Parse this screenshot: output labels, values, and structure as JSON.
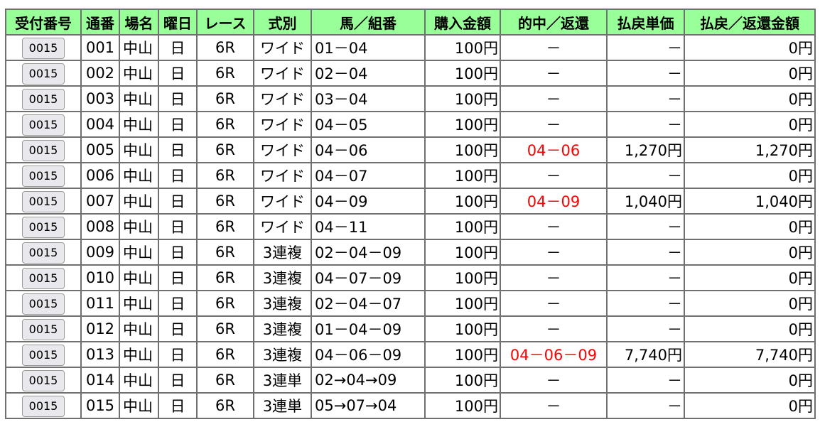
{
  "headers": [
    "受付番号",
    "通番",
    "場名",
    "曜日",
    "レース",
    "式別",
    "馬／組番",
    "購入金額",
    "的中／返還",
    "払戻単価",
    "払戻／返還金額"
  ],
  "hit_color": "#ff0000",
  "header_color": "#99ff99",
  "rows": [
    {
      "receipt": "0015",
      "no": "001",
      "venue": "中山",
      "day": "日",
      "race": "6R",
      "type": "ワイド",
      "combo": "01－04",
      "amount": "100円",
      "hit": "－",
      "unit": "－",
      "payout": "0円"
    },
    {
      "receipt": "0015",
      "no": "002",
      "venue": "中山",
      "day": "日",
      "race": "6R",
      "type": "ワイド",
      "combo": "02－04",
      "amount": "100円",
      "hit": "－",
      "unit": "－",
      "payout": "0円"
    },
    {
      "receipt": "0015",
      "no": "003",
      "venue": "中山",
      "day": "日",
      "race": "6R",
      "type": "ワイド",
      "combo": "03－04",
      "amount": "100円",
      "hit": "－",
      "unit": "－",
      "payout": "0円"
    },
    {
      "receipt": "0015",
      "no": "004",
      "venue": "中山",
      "day": "日",
      "race": "6R",
      "type": "ワイド",
      "combo": "04－05",
      "amount": "100円",
      "hit": "－",
      "unit": "－",
      "payout": "0円"
    },
    {
      "receipt": "0015",
      "no": "005",
      "venue": "中山",
      "day": "日",
      "race": "6R",
      "type": "ワイド",
      "combo": "04－06",
      "amount": "100円",
      "hit": "04－06",
      "unit": "1,270円",
      "payout": "1,270円"
    },
    {
      "receipt": "0015",
      "no": "006",
      "venue": "中山",
      "day": "日",
      "race": "6R",
      "type": "ワイド",
      "combo": "04－07",
      "amount": "100円",
      "hit": "－",
      "unit": "－",
      "payout": "0円"
    },
    {
      "receipt": "0015",
      "no": "007",
      "venue": "中山",
      "day": "日",
      "race": "6R",
      "type": "ワイド",
      "combo": "04－09",
      "amount": "100円",
      "hit": "04－09",
      "unit": "1,040円",
      "payout": "1,040円"
    },
    {
      "receipt": "0015",
      "no": "008",
      "venue": "中山",
      "day": "日",
      "race": "6R",
      "type": "ワイド",
      "combo": "04－11",
      "amount": "100円",
      "hit": "－",
      "unit": "－",
      "payout": "0円"
    },
    {
      "receipt": "0015",
      "no": "009",
      "venue": "中山",
      "day": "日",
      "race": "6R",
      "type": "3連複",
      "combo": "02－04－09",
      "amount": "100円",
      "hit": "－",
      "unit": "－",
      "payout": "0円"
    },
    {
      "receipt": "0015",
      "no": "010",
      "venue": "中山",
      "day": "日",
      "race": "6R",
      "type": "3連複",
      "combo": "04－07－09",
      "amount": "100円",
      "hit": "－",
      "unit": "－",
      "payout": "0円"
    },
    {
      "receipt": "0015",
      "no": "011",
      "venue": "中山",
      "day": "日",
      "race": "6R",
      "type": "3連複",
      "combo": "02－04－07",
      "amount": "100円",
      "hit": "－",
      "unit": "－",
      "payout": "0円"
    },
    {
      "receipt": "0015",
      "no": "012",
      "venue": "中山",
      "day": "日",
      "race": "6R",
      "type": "3連複",
      "combo": "01－04－09",
      "amount": "100円",
      "hit": "－",
      "unit": "－",
      "payout": "0円"
    },
    {
      "receipt": "0015",
      "no": "013",
      "venue": "中山",
      "day": "日",
      "race": "6R",
      "type": "3連複",
      "combo": "04－06－09",
      "amount": "100円",
      "hit": "04－06－09",
      "unit": "7,740円",
      "payout": "7,740円"
    },
    {
      "receipt": "0015",
      "no": "014",
      "venue": "中山",
      "day": "日",
      "race": "6R",
      "type": "3連単",
      "combo": "02→04→09",
      "amount": "100円",
      "hit": "－",
      "unit": "－",
      "payout": "0円"
    },
    {
      "receipt": "0015",
      "no": "015",
      "venue": "中山",
      "day": "日",
      "race": "6R",
      "type": "3連単",
      "combo": "05→07→04",
      "amount": "100円",
      "hit": "－",
      "unit": "－",
      "payout": "0円"
    }
  ]
}
